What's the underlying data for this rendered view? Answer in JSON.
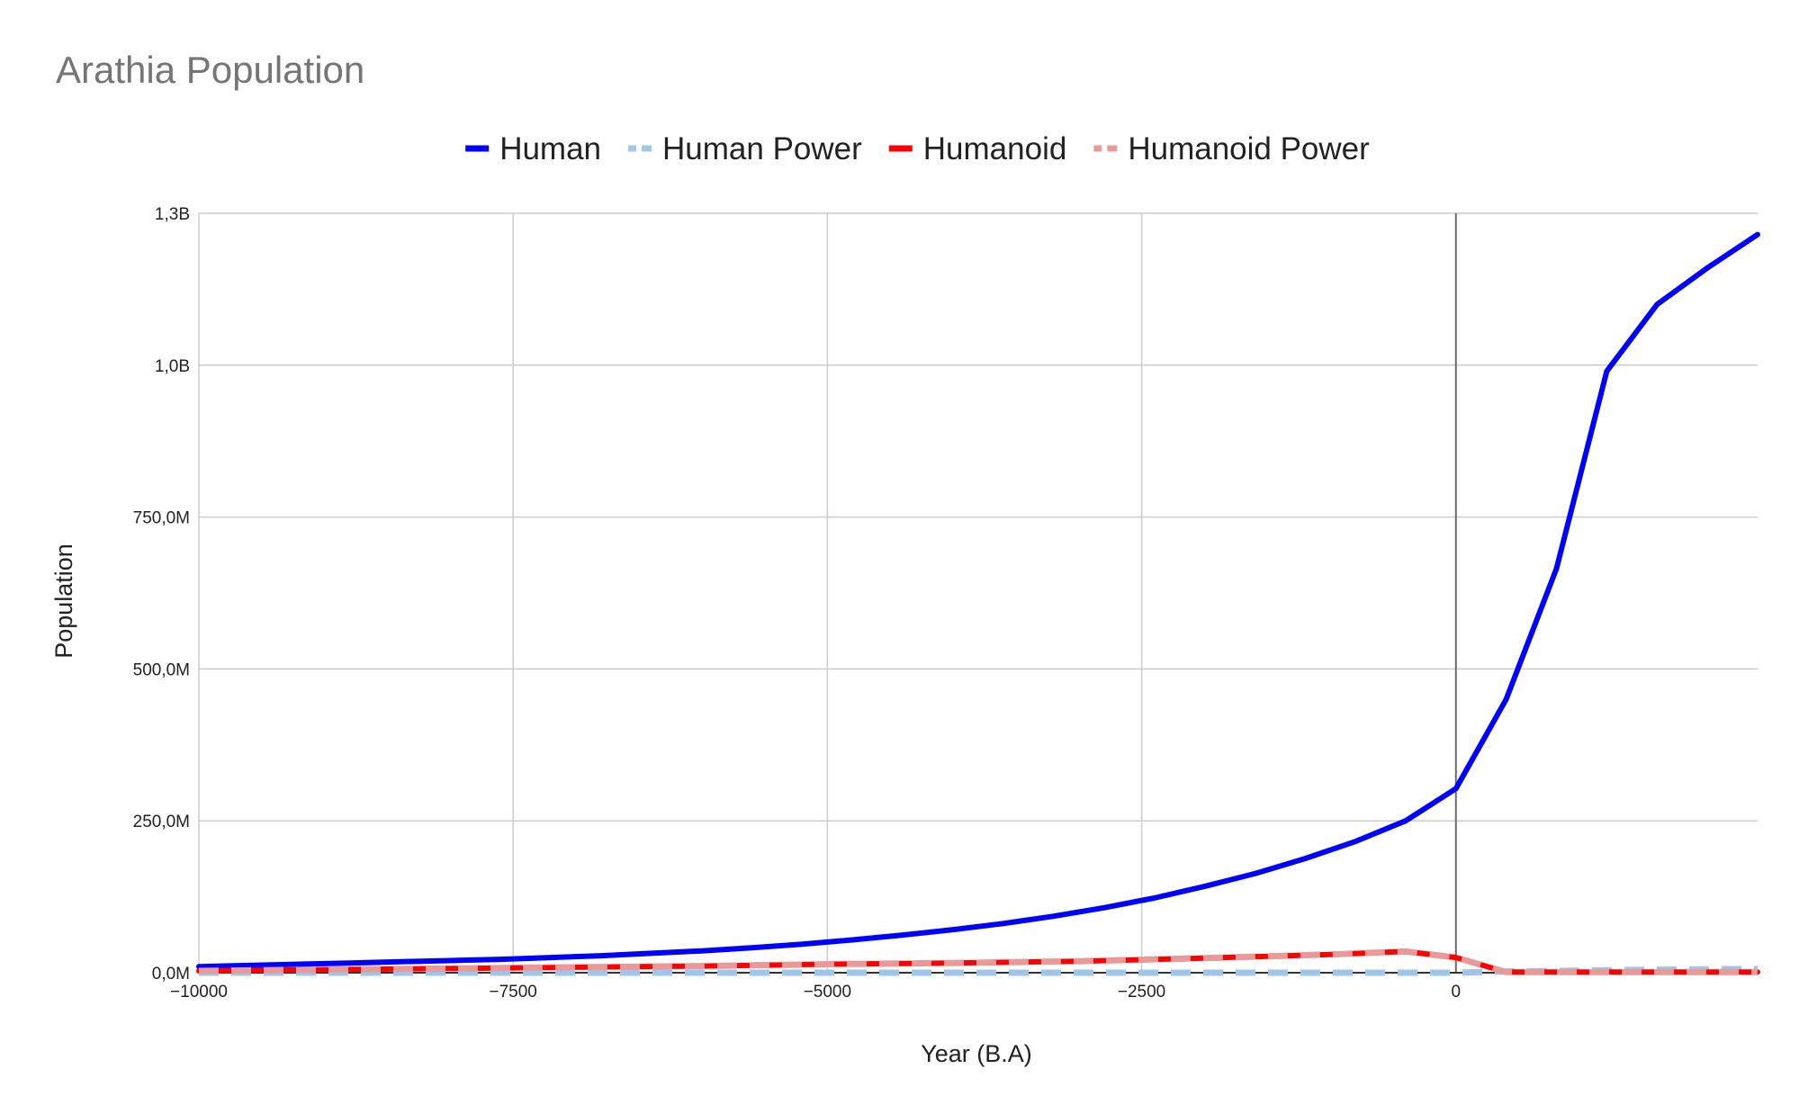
{
  "chart_data": {
    "type": "line",
    "title": "Arathia Population",
    "xlabel": "Year (B.A)",
    "ylabel": "Population",
    "xlim": [
      -10000,
      2400
    ],
    "ylim": [
      0,
      1250000000
    ],
    "x_ticks": [
      -10000,
      -7500,
      -5000,
      -2500,
      0
    ],
    "x_tick_labels": [
      "−10000",
      "−7500",
      "−5000",
      "−2500",
      "0"
    ],
    "y_ticks": [
      0,
      250000000,
      500000000,
      750000000,
      1000000000,
      1250000000
    ],
    "y_tick_labels": [
      "0,0M",
      "250,0M",
      "500,0M",
      "750,0M",
      "1,0B",
      "1,3B"
    ],
    "grid": true,
    "legend_position": "top-center",
    "series": [
      {
        "name": "Human",
        "color": "#0000ff",
        "dashed": false,
        "points": [
          [
            -10000,
            10000000
          ],
          [
            -9600,
            12000000
          ],
          [
            -9200,
            14000000
          ],
          [
            -8800,
            16000000
          ],
          [
            -8400,
            18000000
          ],
          [
            -8000,
            20000000
          ],
          [
            -7600,
            22000000
          ],
          [
            -7200,
            25000000
          ],
          [
            -6800,
            28000000
          ],
          [
            -6400,
            32000000
          ],
          [
            -6000,
            36000000
          ],
          [
            -5600,
            41000000
          ],
          [
            -5200,
            47000000
          ],
          [
            -4800,
            54000000
          ],
          [
            -4400,
            62000000
          ],
          [
            -4000,
            71000000
          ],
          [
            -3600,
            81000000
          ],
          [
            -3200,
            93000000
          ],
          [
            -2800,
            107000000
          ],
          [
            -2400,
            123000000
          ],
          [
            -2000,
            142000000
          ],
          [
            -1600,
            163000000
          ],
          [
            -1200,
            188000000
          ],
          [
            -800,
            216000000
          ],
          [
            -400,
            250000000
          ],
          [
            0,
            303000000
          ],
          [
            400,
            450000000
          ],
          [
            800,
            665000000
          ],
          [
            1200,
            990000000
          ],
          [
            1600,
            1100000000
          ],
          [
            2000,
            1160000000
          ],
          [
            2400,
            1215000000
          ]
        ]
      },
      {
        "name": "Human Power",
        "color": "#9fc5e8",
        "dashed": true,
        "points": [
          [
            -10000,
            0
          ],
          [
            -5000,
            0
          ],
          [
            -2000,
            0
          ],
          [
            -400,
            0
          ],
          [
            0,
            0
          ],
          [
            400,
            2000000
          ],
          [
            800,
            3000000
          ],
          [
            1200,
            4000000
          ],
          [
            1600,
            5000000
          ],
          [
            2000,
            5500000
          ],
          [
            2400,
            6000000
          ]
        ]
      },
      {
        "name": "Humanoid",
        "color": "#ff0000",
        "dashed": false,
        "points": [
          [
            -10000,
            3000000
          ],
          [
            -9000,
            5000000
          ],
          [
            -8000,
            7000000
          ],
          [
            -7000,
            9000000
          ],
          [
            -6000,
            11000000
          ],
          [
            -5000,
            14000000
          ],
          [
            -4000,
            16000000
          ],
          [
            -3000,
            19000000
          ],
          [
            -2000,
            24000000
          ],
          [
            -1000,
            30000000
          ],
          [
            -400,
            35000000
          ],
          [
            0,
            25000000
          ],
          [
            400,
            1000000
          ],
          [
            800,
            1000000
          ],
          [
            1200,
            1000000
          ],
          [
            1600,
            1000000
          ],
          [
            2000,
            1000000
          ],
          [
            2400,
            1000000
          ]
        ]
      },
      {
        "name": "Humanoid Power",
        "color": "#ea9999",
        "dashed": true,
        "points": [
          [
            -10000,
            3000000
          ],
          [
            -9000,
            5000000
          ],
          [
            -8000,
            7000000
          ],
          [
            -7000,
            9000000
          ],
          [
            -6000,
            11000000
          ],
          [
            -5000,
            14000000
          ],
          [
            -4000,
            16000000
          ],
          [
            -3000,
            19000000
          ],
          [
            -2000,
            24000000
          ],
          [
            -1000,
            30000000
          ],
          [
            -400,
            35000000
          ],
          [
            0,
            25000000
          ],
          [
            400,
            1000000
          ],
          [
            800,
            1000000
          ],
          [
            1200,
            1000000
          ],
          [
            1600,
            1000000
          ],
          [
            2000,
            1000000
          ],
          [
            2400,
            1000000
          ]
        ]
      }
    ]
  }
}
